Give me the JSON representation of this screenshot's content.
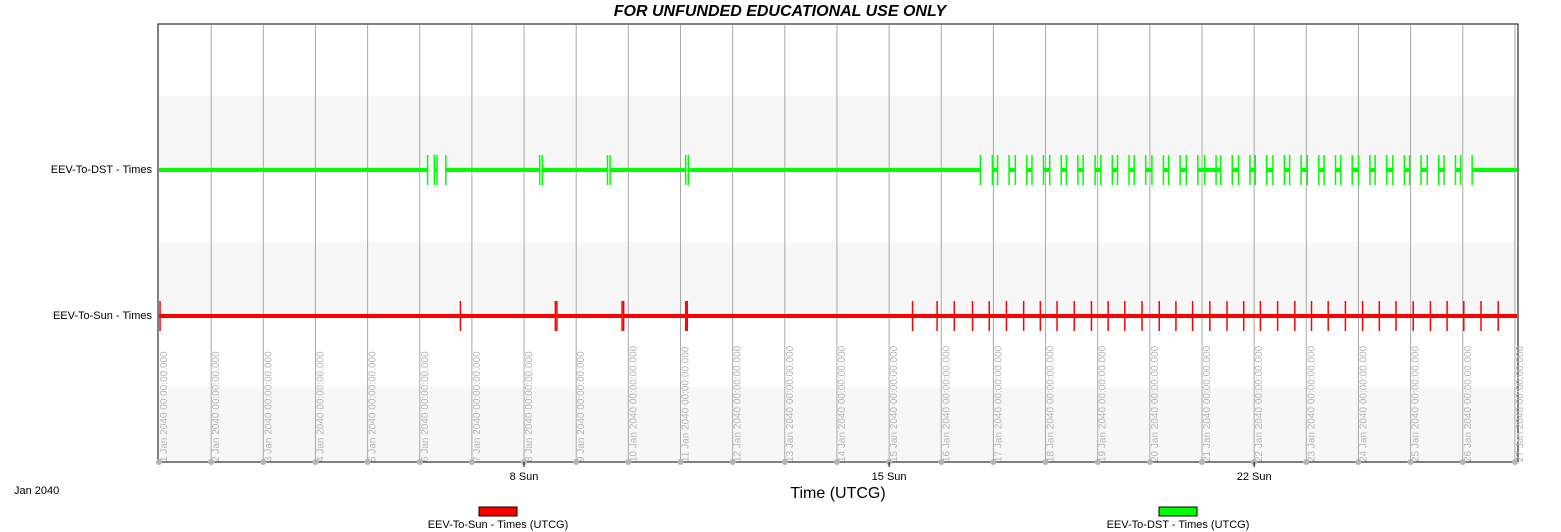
{
  "header": {
    "title": "FOR UNFUNDED EDUCATIONAL USE ONLY"
  },
  "chart_data": {
    "type": "timeline",
    "xlabel": "Time (UTCG)",
    "month_label": "Jan 2040",
    "x_range_days": [
      1,
      27.1
    ],
    "vertical_tick_labels": [
      "1 Jan 2040 00:00:00.000",
      "2 Jan 2040 00:00:00.000",
      "3 Jan 2040 00:00:00.000",
      "4 Jan 2040 00:00:00.000",
      "5 Jan 2040 00:00:00.000",
      "6 Jan 2040 00:00:00.000",
      "7 Jan 2040 00:00:00.000",
      "8 Jan 2040 00:00:00.000",
      "9 Jan 2040 00:00:00.000",
      "10 Jan 2040 00:00:00.000",
      "11 Jan 2040 00:00:00.000",
      "12 Jan 2040 00:00:00.000",
      "13 Jan 2040 00:00:00.000",
      "14 Jan 2040 00:00:00.000",
      "15 Jan 2040 00:00:00.000",
      "16 Jan 2040 00:00:00.000",
      "17 Jan 2040 00:00:00.000",
      "18 Jan 2040 00:00:00.000",
      "19 Jan 2040 00:00:00.000",
      "20 Jan 2040 00:00:00.000",
      "21 Jan 2040 00:00:00.000",
      "22 Jan 2040 00:00:00.000",
      "23 Jan 2040 00:00:00.000",
      "24 Jan 2040 00:00:00.000",
      "25 Jan 2040 00:00:00.000",
      "26 Jan 2040 00:00:00.000",
      "27 Jan 2040 00:00:00.000"
    ],
    "major_ticks": [
      {
        "day": 8,
        "label": "8 Sun"
      },
      {
        "day": 15,
        "label": "15 Sun"
      },
      {
        "day": 22,
        "label": "22 Sun"
      }
    ],
    "series": [
      {
        "name": "EEV-To-DST - Times",
        "legend": "EEV-To-DST - Times (UTCG)",
        "color": "#00ff00",
        "gaps_days": [
          [
            6.15,
            6.28
          ],
          [
            6.33,
            6.5
          ],
          [
            8.3,
            8.35
          ],
          [
            9.6,
            9.65
          ],
          [
            11.1,
            11.15
          ],
          [
            16.75,
            16.98
          ],
          [
            17.08,
            17.3
          ],
          [
            17.42,
            17.64
          ],
          [
            17.74,
            17.96
          ],
          [
            18.08,
            18.3
          ],
          [
            18.4,
            18.62
          ],
          [
            18.72,
            18.95
          ],
          [
            19.06,
            19.28
          ],
          [
            19.38,
            19.6
          ],
          [
            19.7,
            19.92
          ],
          [
            20.04,
            20.26
          ],
          [
            20.36,
            20.58
          ],
          [
            20.7,
            20.92
          ],
          [
            21.36,
            21.58
          ],
          [
            21.7,
            21.92
          ],
          [
            22.02,
            22.24
          ],
          [
            22.36,
            22.58
          ],
          [
            22.68,
            22.9
          ],
          [
            23.02,
            23.24
          ],
          [
            23.34,
            23.56
          ],
          [
            23.66,
            23.88
          ],
          [
            24.0,
            24.22
          ],
          [
            24.32,
            24.54
          ],
          [
            24.66,
            24.88
          ],
          [
            24.98,
            25.2
          ],
          [
            25.32,
            25.54
          ],
          [
            25.64,
            25.86
          ],
          [
            25.96,
            26.18
          ]
        ],
        "single_marks_days": [
          21.05,
          21.27
        ]
      },
      {
        "name": "EEV-To-Sun - Times",
        "legend": "EEV-To-Sun - Times (UTCG)",
        "color": "#ff0000",
        "gaps_days": [
          [
            8.6,
            8.63
          ],
          [
            9.88,
            9.91
          ],
          [
            11.1,
            11.13
          ]
        ],
        "single_marks_days": [
          1.02,
          6.78,
          15.45,
          15.92,
          16.25,
          16.6,
          16.92,
          17.25,
          17.58,
          17.9,
          18.22,
          18.55,
          18.88,
          19.2,
          19.52,
          19.85,
          20.18,
          20.5,
          20.82,
          21.15,
          21.48,
          21.8,
          22.12,
          22.45,
          22.78,
          23.1,
          23.42,
          23.75,
          24.08,
          24.4,
          24.72,
          25.05,
          25.38,
          25.7,
          26.02,
          26.35,
          26.68
        ]
      }
    ]
  }
}
